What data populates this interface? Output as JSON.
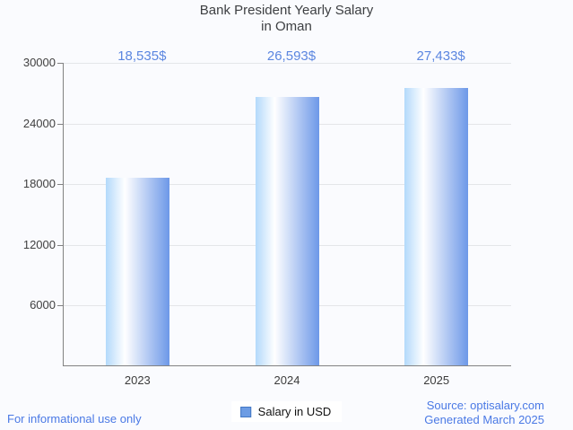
{
  "title": {
    "lines": [
      "Bank President Yearly Salary",
      "in Oman"
    ]
  },
  "chart_data": {
    "type": "bar",
    "title": "Bank President Yearly Salary in Oman",
    "categories": [
      "2023",
      "2024",
      "2025"
    ],
    "series": [
      {
        "name": "Salary in USD",
        "values": [
          18535,
          26593,
          27433
        ]
      }
    ],
    "value_labels": [
      "18,535$",
      "26,593$",
      "27,433$"
    ],
    "xlabel": "",
    "ylabel": "",
    "ylim": [
      0,
      30000
    ],
    "yticks": [
      6000,
      12000,
      18000,
      24000,
      30000
    ],
    "ytick_labels": [
      "6000",
      "12000",
      "18000",
      "24000",
      "30000"
    ],
    "grid": true,
    "legend_position": "bottom"
  },
  "legend": {
    "label": "Salary in USD"
  },
  "footer": {
    "left": "For informational use only",
    "source": "Source: optisalary.com",
    "generated": "Generated March 2025"
  },
  "colors": {
    "background": "#fafbfe",
    "bar_gradient_left": "#b3d9fb",
    "bar_gradient_mid": "#ffffff",
    "bar_gradient_right": "#6d98e8",
    "value_label": "#5b86e0",
    "footer_text": "#4a79e5",
    "grid_line": "#e4e6e9",
    "axis_line": "#828282",
    "title_text": "#3e4043",
    "legend_swatch_fill": "#6c9ce4",
    "legend_swatch_border": "#4277c4"
  }
}
